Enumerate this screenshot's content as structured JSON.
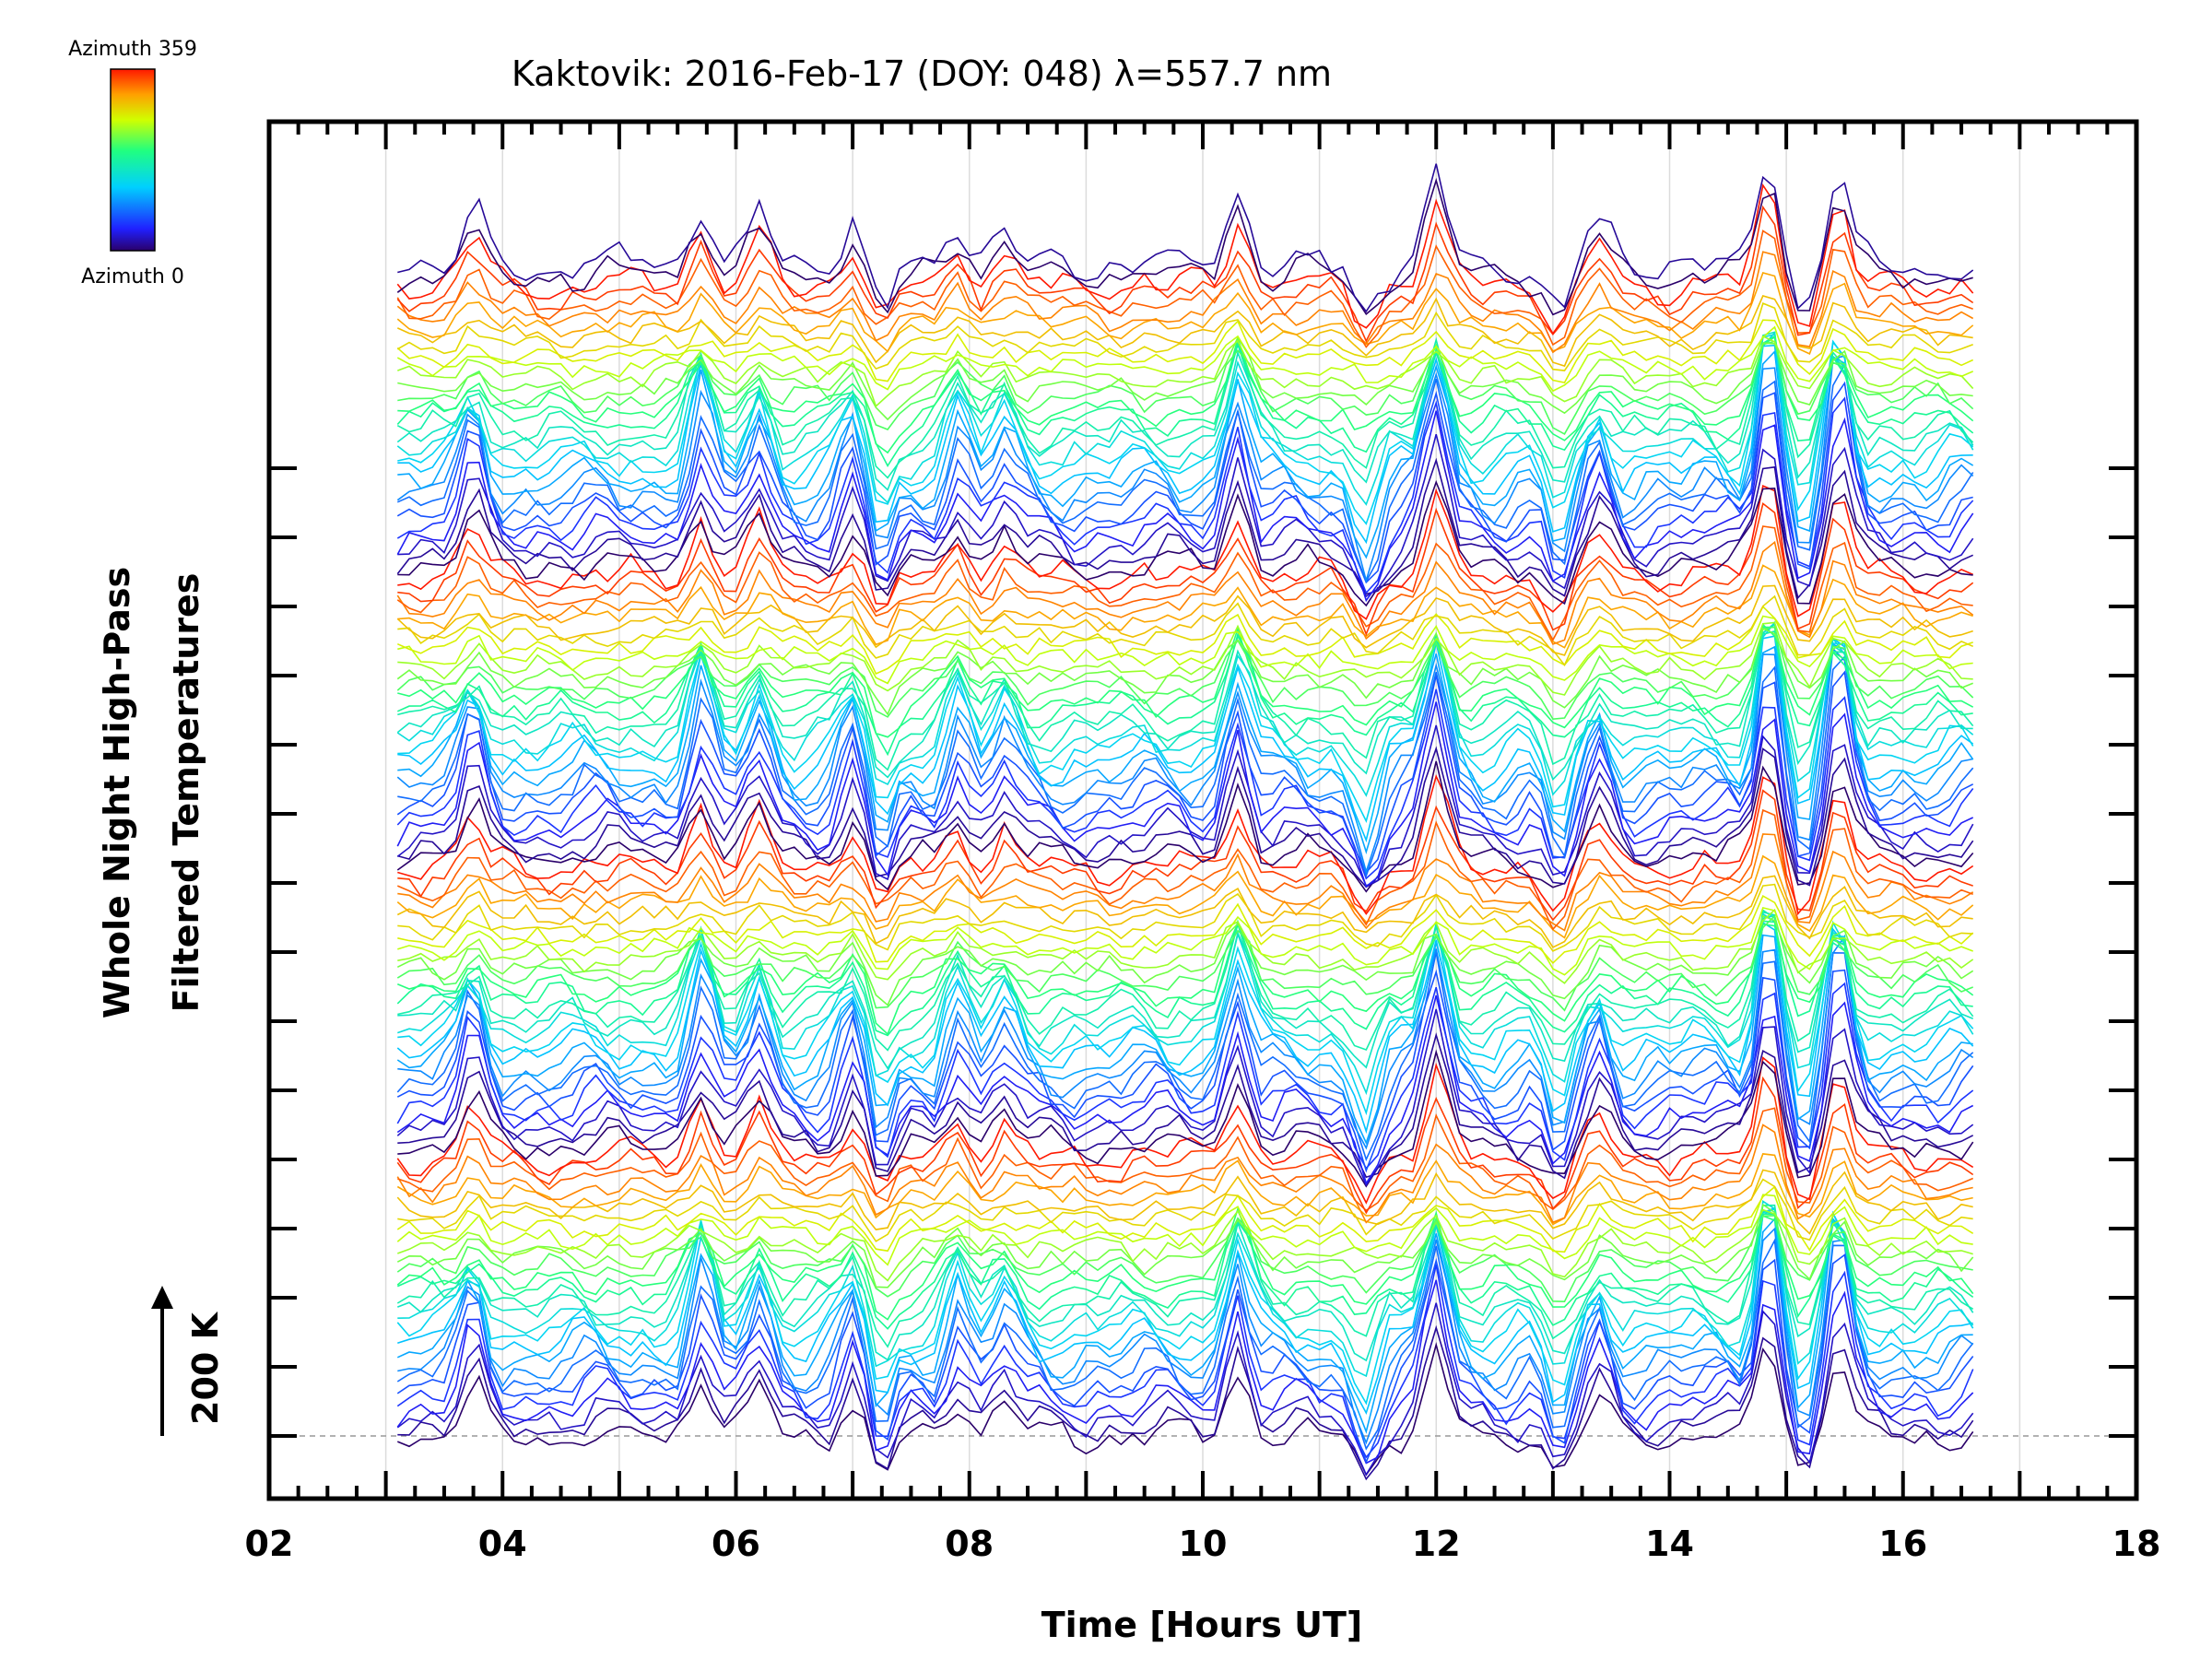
{
  "chart_data": {
    "type": "line",
    "title": "Kaktovik: 2016-Feb-17 (DOY: 048) λ=557.7 nm",
    "xlabel": "Time [Hours UT]",
    "ylabel_line1": "Whole Night High-Pass",
    "ylabel_line2": "Filtered Temperatures",
    "scale_label": "200 K",
    "xlim": [
      2,
      18
    ],
    "x_ticks": [
      "02",
      "04",
      "06",
      "08",
      "10",
      "12",
      "14",
      "16",
      "18"
    ],
    "x_tick_values": [
      2,
      4,
      6,
      8,
      10,
      12,
      14,
      16,
      18
    ],
    "data_time_range": [
      3.1,
      16.6
    ],
    "n_series": 114,
    "series_offset_K": 15,
    "colorbar": {
      "top_label": "Azimuth 359",
      "bottom_label": "Azimuth 0",
      "colormap": "rainbow"
    },
    "peak_features": [
      {
        "time": 3.75,
        "amplitude_K": 90
      },
      {
        "time": 5.7,
        "amplitude_K": 110
      },
      {
        "time": 6.2,
        "amplitude_K": 85
      },
      {
        "time": 7.0,
        "amplitude_K": 70
      },
      {
        "time": 7.25,
        "amplitude_K": -80
      },
      {
        "time": 7.9,
        "amplitude_K": 80
      },
      {
        "time": 8.3,
        "amplitude_K": 60
      },
      {
        "time": 10.3,
        "amplitude_K": 130
      },
      {
        "time": 11.4,
        "amplitude_K": -75
      },
      {
        "time": 12.0,
        "amplitude_K": 150
      },
      {
        "time": 13.05,
        "amplitude_K": -85
      },
      {
        "time": 13.4,
        "amplitude_K": 70
      },
      {
        "time": 14.85,
        "amplitude_K": 190
      },
      {
        "time": 15.15,
        "amplitude_K": -70
      },
      {
        "time": 15.45,
        "amplitude_K": 150
      }
    ]
  }
}
